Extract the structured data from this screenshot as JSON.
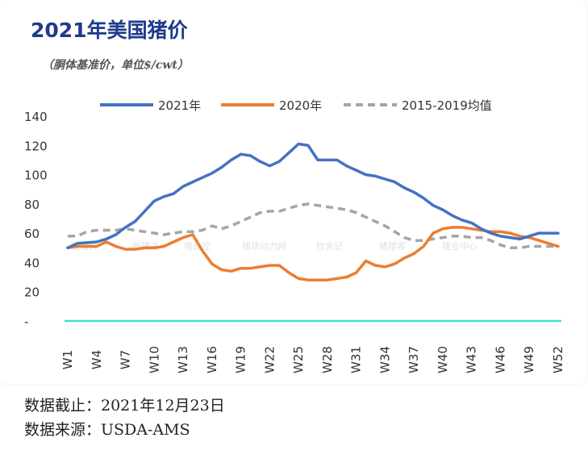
{
  "title": "2021年美国猪价",
  "subtitle": "（胴体基准价，单位$/cwt）",
  "footer": {
    "cutoff": "数据截止：2021年12月23日",
    "source": "数据来源：USDA-AMS"
  },
  "watermarks": [
    "微猪科",
    "新猪派",
    "猪会控",
    "猪场动力网",
    "牧舍记",
    "猪猎客",
    "猪业中心"
  ],
  "colors": {
    "series_2021": "#4472C4",
    "series_2020": "#ED7D31",
    "series_avg": "#A5A5A5",
    "zero_line": "#3EE0C7",
    "title": "#1F3A8C"
  },
  "chart_data": {
    "type": "line",
    "title": "2021年美国猪价",
    "xlabel": "",
    "ylabel": "",
    "ylim": [
      0,
      140
    ],
    "yticks": [
      0,
      20,
      40,
      60,
      80,
      100,
      120,
      140
    ],
    "ytick_labels": [
      "-",
      "20",
      "40",
      "60",
      "80",
      "100",
      "120",
      "140"
    ],
    "xtick_labels": [
      "W1",
      "W4",
      "W7",
      "W10",
      "W13",
      "W16",
      "W19",
      "W22",
      "W25",
      "W28",
      "W31",
      "W34",
      "W37",
      "W40",
      "W43",
      "W46",
      "W49",
      "W52"
    ],
    "grid": false,
    "legend": "top",
    "series": [
      {
        "name": "2021年",
        "color": "#4472C4",
        "dash": "solid",
        "values": [
          50,
          53,
          53.5,
          54,
          56,
          59,
          64,
          68,
          75,
          82,
          85,
          87,
          92,
          95,
          98,
          101,
          105,
          110,
          114,
          113,
          109,
          106,
          109,
          115,
          121,
          120,
          110,
          110,
          110,
          106,
          103,
          100,
          99,
          97,
          95,
          91,
          88,
          84,
          79,
          76,
          72,
          69,
          67,
          63,
          60,
          58,
          57,
          56,
          58,
          60,
          60,
          60
        ]
      },
      {
        "name": "2020年",
        "color": "#ED7D31",
        "dash": "solid",
        "values": [
          50,
          51,
          51,
          51,
          54,
          51,
          49,
          49,
          50,
          50,
          51,
          54,
          57,
          59,
          48,
          39,
          35,
          34,
          36,
          36,
          37,
          38,
          38,
          33,
          29,
          28,
          28,
          28,
          29,
          30,
          33,
          41,
          38,
          37,
          39,
          43,
          46,
          51,
          60,
          63,
          64,
          64,
          63,
          62,
          61,
          61,
          60,
          58,
          57,
          55,
          53,
          51
        ]
      },
      {
        "name": "2015-2019均值",
        "color": "#A5A5A5",
        "dash": "dashed",
        "values": [
          58,
          58,
          61,
          62,
          62,
          62,
          63,
          62,
          61,
          60,
          59,
          60,
          61,
          61,
          62,
          65,
          63,
          65,
          68,
          71,
          74,
          75,
          75,
          77,
          79,
          80,
          79,
          78,
          77,
          76,
          74,
          71,
          68,
          65,
          61,
          57,
          55,
          55,
          56,
          57,
          58,
          58,
          57,
          57,
          55,
          52,
          50,
          50,
          51,
          51,
          51,
          51
        ]
      }
    ]
  }
}
